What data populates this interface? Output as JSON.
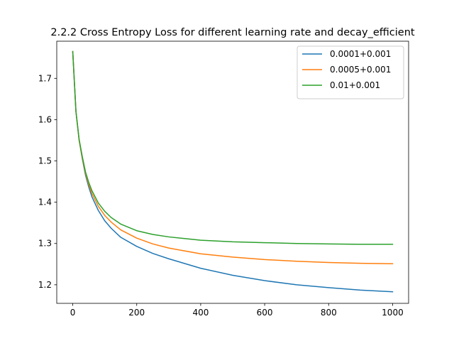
{
  "chart_data": {
    "type": "line",
    "title": "2.2.2 Cross Entropy Loss for different learning rate and decay_efficient",
    "xlabel": "",
    "ylabel": "",
    "xlim": [
      -50,
      1050
    ],
    "ylim": [
      1.155,
      1.79
    ],
    "xticks": [
      0,
      200,
      400,
      600,
      800,
      1000
    ],
    "yticks": [
      1.2,
      1.3,
      1.4,
      1.5,
      1.6,
      1.7
    ],
    "xtick_labels": [
      "0",
      "200",
      "400",
      "600",
      "800",
      "1000"
    ],
    "ytick_labels": [
      "1.2",
      "1.3",
      "1.4",
      "1.5",
      "1.6",
      "1.7"
    ],
    "grid": false,
    "legend_position": "top-right",
    "series": [
      {
        "name": "0.0001+0.001",
        "color": "#1f77b4",
        "x": [
          0,
          10,
          20,
          30,
          40,
          50,
          60,
          80,
          100,
          120,
          150,
          200,
          250,
          300,
          400,
          500,
          600,
          700,
          800,
          900,
          1000
        ],
        "y": [
          1.765,
          1.62,
          1.55,
          1.505,
          1.465,
          1.437,
          1.413,
          1.38,
          1.355,
          1.337,
          1.315,
          1.293,
          1.276,
          1.263,
          1.24,
          1.223,
          1.21,
          1.2,
          1.193,
          1.187,
          1.183
        ]
      },
      {
        "name": "0.0005+0.001",
        "color": "#ff7f0e",
        "x": [
          0,
          10,
          20,
          30,
          40,
          50,
          60,
          80,
          100,
          120,
          150,
          200,
          250,
          300,
          400,
          500,
          600,
          700,
          800,
          900,
          1000
        ],
        "y": [
          1.765,
          1.62,
          1.55,
          1.507,
          1.469,
          1.443,
          1.421,
          1.39,
          1.368,
          1.352,
          1.333,
          1.313,
          1.299,
          1.289,
          1.275,
          1.267,
          1.261,
          1.257,
          1.254,
          1.252,
          1.251
        ]
      },
      {
        "name": "0.01+0.001",
        "color": "#2ca02c",
        "x": [
          0,
          10,
          20,
          30,
          40,
          50,
          60,
          80,
          100,
          120,
          150,
          200,
          250,
          300,
          400,
          500,
          600,
          700,
          800,
          900,
          1000
        ],
        "y": [
          1.765,
          1.62,
          1.552,
          1.51,
          1.473,
          1.448,
          1.428,
          1.398,
          1.378,
          1.363,
          1.347,
          1.331,
          1.322,
          1.316,
          1.308,
          1.304,
          1.302,
          1.3,
          1.299,
          1.298,
          1.298
        ]
      }
    ]
  }
}
